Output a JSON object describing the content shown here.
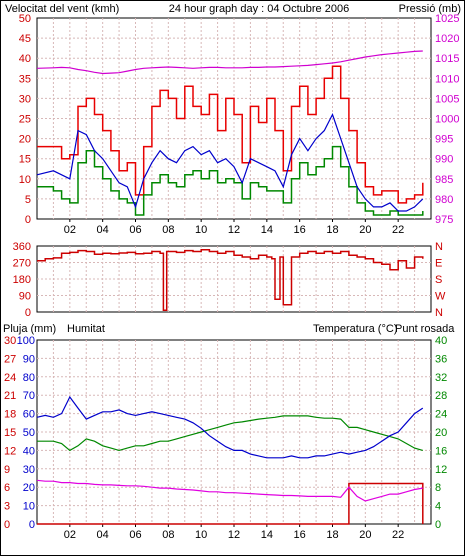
{
  "colors": {
    "wind_avg": "#0000cc",
    "wind_gust": "#e80000",
    "wind_min": "#008800",
    "pressure": "#d000d0",
    "direction": "#cc0000",
    "humidity": "#0000cc",
    "temperature": "#008800",
    "rain": "#cc0000",
    "dewpoint": "#e000e0",
    "grid": "#d8b8b8",
    "axis_left": "#cc0000",
    "axis_right": "#d000d0"
  },
  "chart_data": [
    {
      "type": "line",
      "title": "24 hour graph day : 04 Octubre 2006",
      "ylabel": "Velocitat del vent (kmh)",
      "y2label": "Pressió (mb)",
      "x_ticks": [
        "02",
        "04",
        "06",
        "08",
        "10",
        "12",
        "14",
        "16",
        "18",
        "20",
        "22"
      ],
      "ylim": [
        0,
        50
      ],
      "y_ticks": [
        "0",
        "5",
        "10",
        "15",
        "20",
        "25",
        "30",
        "35",
        "40",
        "45",
        "50"
      ],
      "y2lim": [
        975,
        1025
      ],
      "y2_ticks": [
        "975",
        "980",
        "985",
        "990",
        "995",
        "1000",
        "1005",
        "1010",
        "1015",
        "1020",
        "1025"
      ],
      "x_hours": [
        0,
        1,
        1.5,
        2,
        2.5,
        3,
        3.5,
        4,
        4.5,
        5,
        5.5,
        6,
        6.5,
        7,
        7.5,
        8,
        8.5,
        9,
        9.5,
        10,
        10.5,
        11,
        11.5,
        12,
        12.5,
        13,
        13.5,
        14,
        14.5,
        15,
        15.5,
        16,
        16.5,
        17,
        17.5,
        18,
        18.5,
        19,
        19.5,
        20,
        20.5,
        21,
        21.5,
        22,
        22.5,
        23,
        23.5
      ],
      "series": [
        {
          "key": "gust",
          "values": [
            18,
            18,
            15,
            16,
            28,
            30,
            26,
            22,
            17,
            12,
            14,
            6,
            18,
            28,
            32,
            30,
            25,
            33,
            28,
            26,
            31,
            22,
            30,
            26,
            14,
            28,
            24,
            30,
            22,
            12,
            28,
            33,
            26,
            30,
            35,
            38,
            30,
            22,
            14,
            8,
            6,
            7,
            7,
            4,
            5,
            6,
            9
          ]
        },
        {
          "key": "avg",
          "values": [
            11,
            12,
            11,
            10,
            22,
            21,
            17,
            15,
            12,
            9,
            8,
            3,
            10,
            14,
            17,
            15,
            14,
            17,
            18,
            16,
            17,
            14,
            15,
            13,
            9,
            15,
            14,
            13,
            12,
            8,
            16,
            20,
            17,
            20,
            22,
            26,
            20,
            14,
            8,
            5,
            3,
            3,
            4,
            2,
            2,
            3,
            5
          ]
        },
        {
          "key": "min",
          "values": [
            8,
            7,
            5,
            4,
            14,
            17,
            13,
            10,
            7,
            5,
            4,
            1,
            6,
            9,
            11,
            9,
            8,
            11,
            12,
            10,
            12,
            9,
            10,
            9,
            5,
            9,
            8,
            7,
            7,
            4,
            10,
            14,
            11,
            13,
            15,
            18,
            13,
            8,
            4,
            2,
            1,
            1,
            2,
            1,
            1,
            1,
            2
          ]
        },
        {
          "key": "pressure",
          "values": [
            1012.5,
            1012.6,
            1012.7,
            1012.6,
            1012.2,
            1011.9,
            1011.5,
            1011.2,
            1011.3,
            1011.4,
            1011.8,
            1012.2,
            1012.5,
            1012.6,
            1012.7,
            1012.8,
            1012.7,
            1012.6,
            1012.5,
            1012.6,
            1012.7,
            1012.7,
            1012.6,
            1012.6,
            1012.6,
            1012.7,
            1012.7,
            1012.8,
            1012.8,
            1012.9,
            1013.0,
            1013.1,
            1013.2,
            1013.4,
            1013.6,
            1013.8,
            1014.1,
            1014.5,
            1014.9,
            1015.3,
            1015.6,
            1015.9,
            1016.1,
            1016.3,
            1016.5,
            1016.7,
            1016.8
          ]
        }
      ]
    },
    {
      "type": "line",
      "y_ticks": [
        "0",
        "90",
        "180",
        "270",
        "360"
      ],
      "y2_ticks": [
        "N",
        "W",
        "S",
        "E",
        "N"
      ],
      "ylim": [
        0,
        360
      ],
      "x_hours": [
        0,
        0.5,
        1,
        1.5,
        2,
        2.5,
        3,
        3.5,
        4,
        4.5,
        5,
        5.5,
        6,
        6.5,
        7,
        7.5,
        7.7,
        7.9,
        8.5,
        9,
        9.5,
        10,
        10.5,
        11,
        11.5,
        12,
        12.5,
        13,
        13.5,
        14,
        14.3,
        14.5,
        14.8,
        15,
        15.5,
        16,
        16.5,
        17,
        17.5,
        18,
        18.5,
        19,
        19.5,
        20,
        20.5,
        21,
        21.5,
        22,
        22.5,
        23,
        23.5
      ],
      "series": [
        {
          "key": "direction",
          "values": [
            280,
            290,
            295,
            320,
            325,
            335,
            330,
            315,
            320,
            318,
            322,
            325,
            318,
            320,
            330,
            320,
            10,
            330,
            325,
            335,
            330,
            340,
            330,
            320,
            330,
            310,
            300,
            290,
            310,
            300,
            290,
            70,
            300,
            40,
            300,
            320,
            330,
            320,
            330,
            320,
            330,
            310,
            300,
            290,
            270,
            260,
            230,
            280,
            240,
            300,
            290
          ]
        }
      ]
    },
    {
      "type": "line",
      "ylabel": "Pluja (mm)",
      "humidity_label": "Humitat",
      "y2label": "Temperatura (°C)",
      "dewpoint_label": "Punt rosada",
      "ylim": [
        0,
        100
      ],
      "y_ticks": [
        "0",
        "10",
        "20",
        "30",
        "40",
        "50",
        "60",
        "70",
        "80",
        "90",
        "100"
      ],
      "rain_ticks": [
        "0",
        "3",
        "6",
        "9",
        "12",
        "15",
        "18",
        "21",
        "24",
        "27",
        "30"
      ],
      "y2lim": [
        0,
        40
      ],
      "y2_ticks": [
        "0",
        "4",
        "8",
        "12",
        "16",
        "20",
        "24",
        "28",
        "32",
        "36",
        "40"
      ],
      "x_hours": [
        0,
        0.5,
        1,
        1.5,
        2,
        2.5,
        3,
        3.5,
        4,
        4.5,
        5,
        5.5,
        6,
        6.5,
        7,
        7.5,
        8,
        8.5,
        9,
        9.5,
        10,
        10.5,
        11,
        11.5,
        12,
        12.5,
        13,
        13.5,
        14,
        14.5,
        15,
        15.5,
        16,
        16.5,
        17,
        17.5,
        18,
        18.5,
        19,
        19.5,
        20,
        20.5,
        21,
        21.5,
        22,
        22.5,
        23,
        23.5
      ],
      "series": [
        {
          "key": "humidity",
          "values": [
            58,
            59,
            58,
            60,
            69,
            63,
            57,
            59,
            61,
            61,
            62,
            60,
            59,
            60,
            61,
            60,
            59,
            58,
            57,
            55,
            52,
            48,
            45,
            42,
            40,
            40,
            38,
            37,
            36,
            36,
            36,
            37,
            36,
            36,
            37,
            37,
            38,
            39,
            38,
            39,
            40,
            42,
            45,
            48,
            50,
            55,
            60,
            63
          ]
        },
        {
          "key": "temperature",
          "values": [
            18,
            18,
            18,
            17.5,
            16,
            17,
            18.5,
            18,
            17,
            16.5,
            16,
            16.5,
            17,
            17,
            17.5,
            18,
            18,
            18.5,
            19,
            19.5,
            20,
            20.5,
            21,
            21.5,
            22,
            22.2,
            22.5,
            22.8,
            23,
            23.2,
            23.5,
            23.5,
            23.5,
            23.5,
            23.2,
            23,
            23,
            22.8,
            21,
            21,
            20.5,
            20,
            19.5,
            19,
            18.5,
            17.5,
            16.5,
            16
          ]
        },
        {
          "key": "dewpoint",
          "values": [
            9.5,
            9.3,
            9.3,
            9,
            9,
            8.8,
            8.8,
            8.6,
            8.5,
            8.5,
            8.4,
            8.3,
            8.3,
            8.2,
            8.0,
            7.8,
            7.8,
            7.6,
            7.5,
            7.4,
            7.2,
            7.0,
            7.0,
            6.8,
            6.8,
            6.7,
            6.6,
            6.5,
            6.4,
            6.3,
            6.2,
            6.2,
            6.1,
            6.0,
            6.0,
            6.0,
            6.0,
            5.8,
            8,
            6,
            5,
            5.5,
            6,
            6.5,
            6.5,
            7,
            7.5,
            7.8
          ]
        },
        {
          "key": "rain",
          "values": [
            0,
            0,
            0,
            0,
            0,
            0,
            0,
            0,
            0,
            0,
            0,
            0,
            0,
            0,
            0,
            0,
            0,
            0,
            0,
            0,
            0,
            0,
            0,
            0,
            0,
            0,
            0,
            0,
            0,
            0,
            0,
            0,
            0,
            0,
            0,
            0,
            0,
            0,
            22,
            22,
            22,
            22,
            22,
            22,
            22,
            22,
            22,
            0
          ]
        }
      ]
    }
  ]
}
